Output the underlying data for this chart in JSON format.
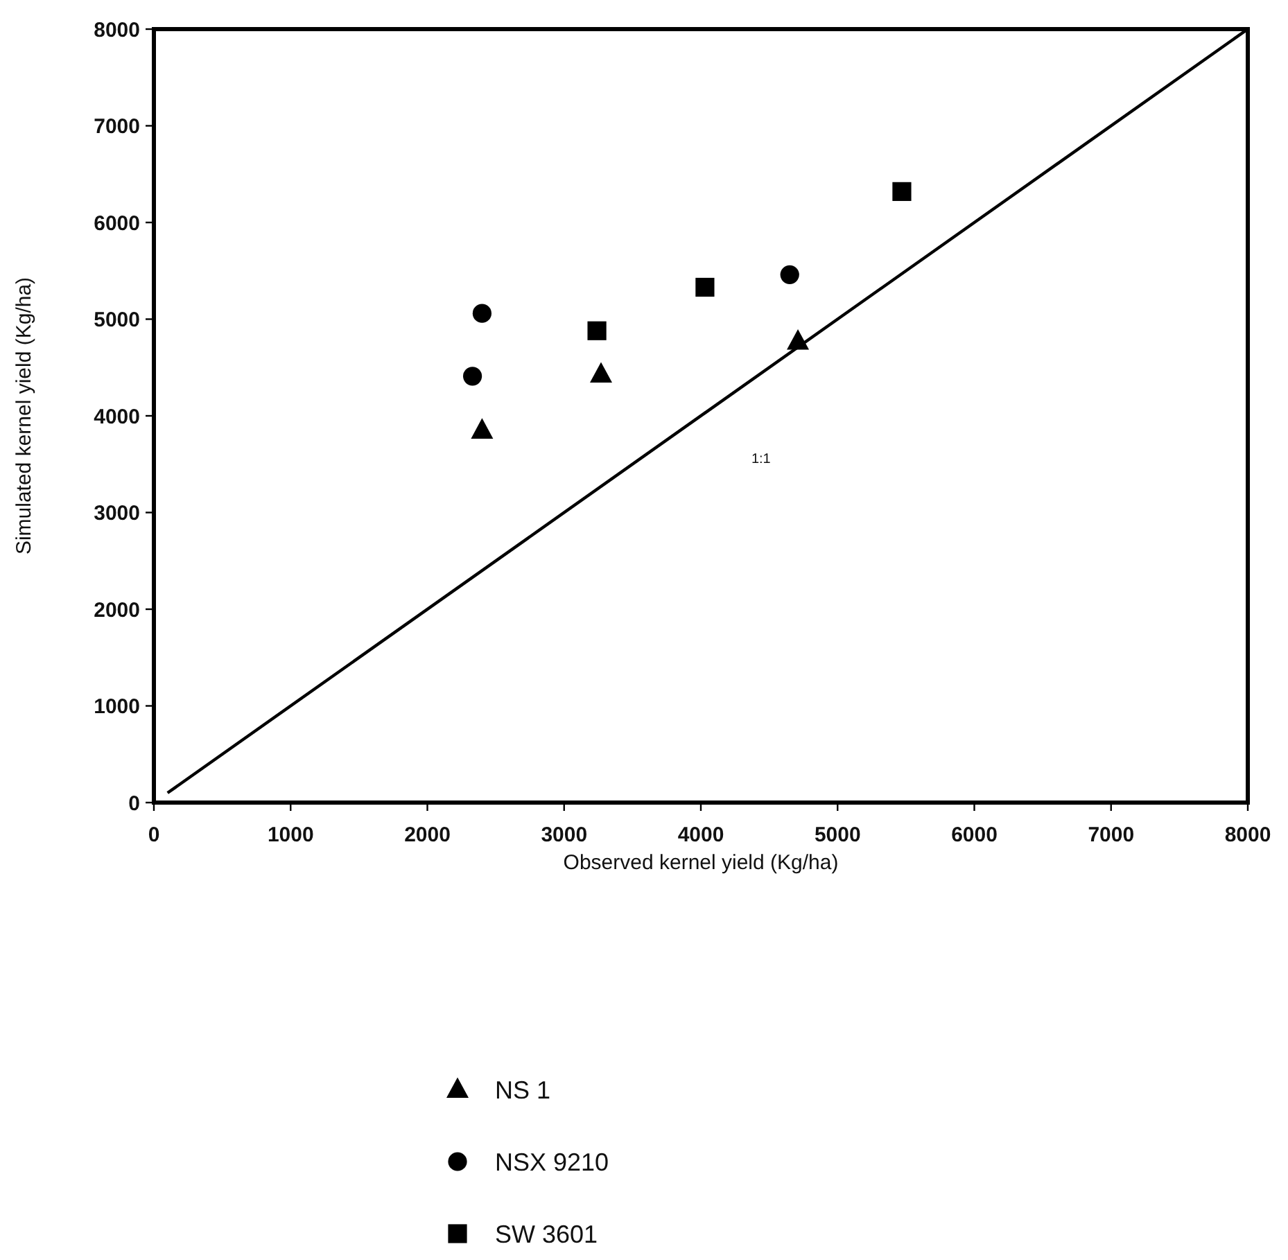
{
  "chart_data": {
    "type": "scatter",
    "xlabel": "Observed kernel yield (Kg/ha)",
    "ylabel": "Simulated kernel yield (Kg/ha)",
    "xlim": [
      0,
      8000
    ],
    "ylim": [
      0,
      8000
    ],
    "xticks": [
      0,
      1000,
      2000,
      3000,
      4000,
      5000,
      6000,
      7000,
      8000
    ],
    "yticks": [
      0,
      1000,
      2000,
      3000,
      4000,
      5000,
      6000,
      7000,
      8000
    ],
    "grid": false,
    "legend": "bottom",
    "series": [
      {
        "name": "NS 1",
        "color": "#000000",
        "marker": "triangle",
        "x": [
          2400,
          3270,
          4710
        ],
        "values": [
          3850,
          4430,
          4770
        ]
      },
      {
        "name": "NSX 9210",
        "color": "#000000",
        "marker": "circle",
        "x": [
          2400,
          2330,
          4650
        ],
        "values": [
          5060,
          4410,
          5460
        ]
      },
      {
        "name": "SW 3601",
        "color": "#000000",
        "marker": "square",
        "x": [
          3240,
          4030,
          5470
        ],
        "values": [
          4880,
          5330,
          6320
        ]
      },
      {
        "type": "line",
        "color": "#000000",
        "line_style": "solid",
        "marker": "none",
        "x": [
          100,
          8000
        ],
        "values": [
          100,
          8000
        ]
      }
    ],
    "annotations": [
      "1:1"
    ]
  }
}
